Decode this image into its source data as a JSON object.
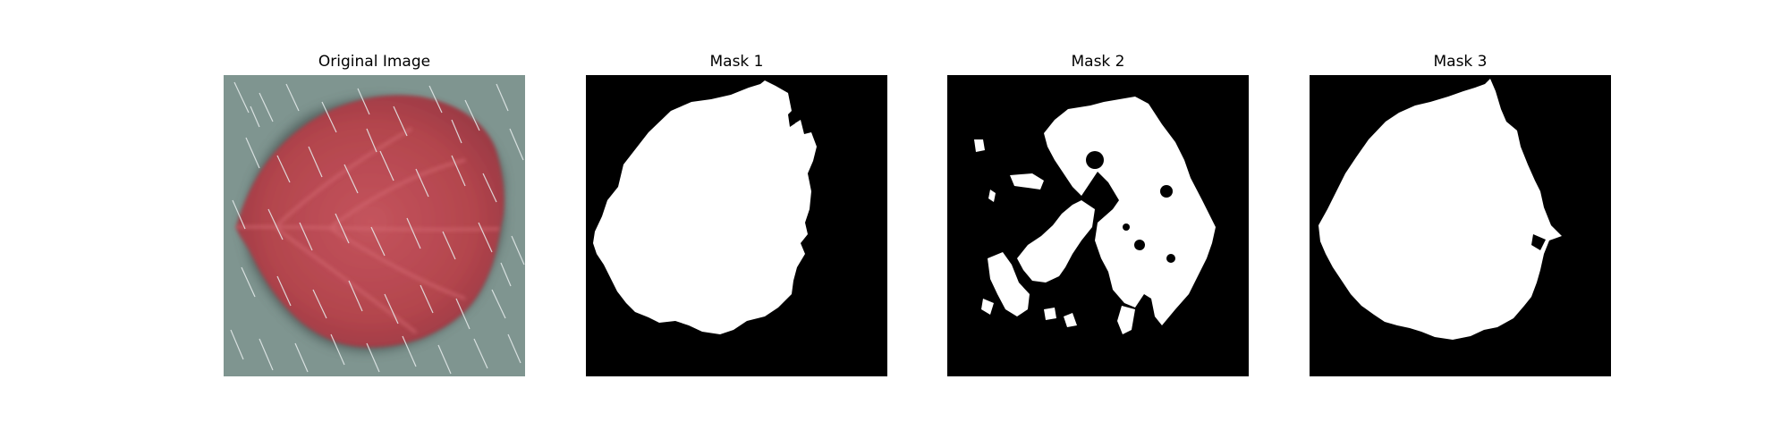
{
  "figure": {
    "panels": [
      {
        "title": "Original Image"
      },
      {
        "title": "Mask 1"
      },
      {
        "title": "Mask 2"
      },
      {
        "title": "Mask 3"
      }
    ]
  },
  "colors": {
    "background": "#ffffff",
    "mask_background": "#000000",
    "mask_foreground": "#ffffff",
    "leaf": "#b8474f",
    "surface": "#7f9590",
    "rain_streak": "#e8eeee"
  }
}
